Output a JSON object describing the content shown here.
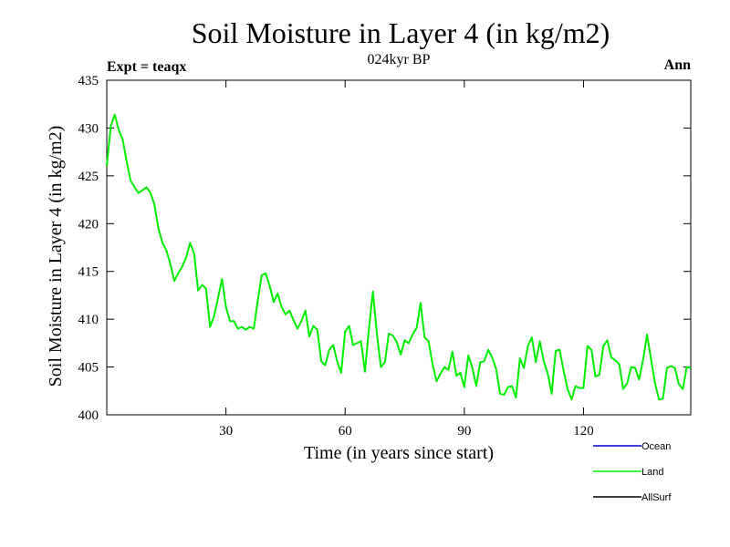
{
  "chart_data": {
    "type": "line",
    "title": "Soil Moisture in Layer 4 (in kg/m2)",
    "subtitle": "024kyr BP",
    "left_note": "Expt = teaqx",
    "right_note": "Ann",
    "xlabel": "Time (in years since start)",
    "ylabel": "Soil Moisture in Layer 4 (in kg/m2)",
    "xlim": [
      0,
      147
    ],
    "ylim": [
      400,
      435
    ],
    "xticks": [
      30,
      60,
      90,
      120
    ],
    "yticks": [
      400,
      405,
      410,
      415,
      420,
      425,
      430,
      435
    ],
    "legend_position": "bottom-right, below plot",
    "series": [
      {
        "name": "Ocean",
        "color": "#0000cc",
        "values": []
      },
      {
        "name": "Land",
        "color": "#00ee00",
        "x": [
          0,
          1,
          2,
          3,
          4,
          5,
          6,
          7,
          8,
          9,
          10,
          11,
          12,
          13,
          14,
          15,
          16,
          17,
          18,
          19,
          20,
          21,
          22,
          23,
          24,
          25,
          26,
          27,
          28,
          29,
          30,
          31,
          32,
          33,
          34,
          35,
          36,
          37,
          38,
          39,
          40,
          41,
          42,
          43,
          44,
          45,
          46,
          47,
          48,
          49,
          50,
          51,
          52,
          53,
          54,
          55,
          56,
          57,
          58,
          59,
          60,
          61,
          62,
          63,
          64,
          65,
          66,
          67,
          68,
          69,
          70,
          71,
          72,
          73,
          74,
          75,
          76,
          77,
          78,
          79,
          80,
          81,
          82,
          83,
          84,
          85,
          86,
          87,
          88,
          89,
          90,
          91,
          92,
          93,
          94,
          95,
          96,
          97,
          98,
          99,
          100,
          101,
          102,
          103,
          104,
          105,
          106,
          107,
          108,
          109,
          110,
          111,
          112,
          113,
          114,
          115,
          116,
          117,
          118,
          119,
          120,
          121,
          122,
          123,
          124,
          125,
          126,
          127,
          128,
          129,
          130,
          131,
          132,
          133,
          134,
          135,
          136,
          137,
          138,
          139,
          140,
          141,
          142,
          143,
          144,
          145,
          146,
          147
        ],
        "values": [
          426.0,
          430.2,
          431.4,
          429.8,
          428.8,
          426.5,
          424.5,
          423.8,
          423.2,
          423.5,
          423.8,
          423.2,
          422.0,
          419.5,
          418.0,
          417.2,
          415.8,
          414.0,
          414.8,
          415.5,
          416.5,
          418.0,
          416.8,
          413.0,
          413.6,
          413.2,
          409.2,
          410.3,
          412.2,
          414.2,
          411.3,
          409.8,
          409.8,
          409.0,
          409.2,
          408.9,
          409.2,
          409.0,
          411.9,
          414.6,
          414.8,
          413.5,
          411.8,
          412.7,
          411.3,
          410.5,
          410.9,
          409.9,
          409.0,
          409.8,
          410.9,
          408.2,
          409.3,
          408.9,
          405.6,
          405.2,
          406.8,
          407.3,
          405.6,
          404.4,
          408.7,
          409.3,
          407.3,
          407.5,
          407.7,
          404.5,
          409.0,
          412.9,
          408.4,
          405.0,
          405.5,
          408.5,
          408.3,
          407.6,
          406.3,
          407.8,
          407.5,
          408.4,
          409.1,
          411.7,
          408.1,
          407.7,
          405.3,
          403.5,
          404.3,
          405.0,
          404.7,
          406.6,
          404.1,
          404.4,
          402.9,
          406.2,
          405.0,
          403.0,
          405.5,
          405.6,
          406.8,
          406.0,
          404.8,
          402.2,
          402.1,
          402.9,
          403.0,
          401.8,
          405.9,
          404.9,
          407.2,
          408.1,
          405.5,
          407.7,
          405.6,
          404.3,
          402.2,
          406.7,
          406.8,
          404.6,
          402.7,
          401.6,
          403.0,
          402.8,
          402.8,
          407.2,
          406.8,
          404.0,
          404.2,
          407.2,
          407.8,
          406.0,
          405.7,
          405.3,
          402.7,
          403.3,
          405.0,
          404.9,
          403.7,
          405.8,
          408.4,
          405.8,
          403.3,
          401.6,
          401.7,
          404.9,
          405.1,
          404.9,
          403.2,
          402.7,
          405.0,
          404.9
        ]
      },
      {
        "name": "AllSurf",
        "color": "#000000",
        "values": []
      }
    ]
  }
}
